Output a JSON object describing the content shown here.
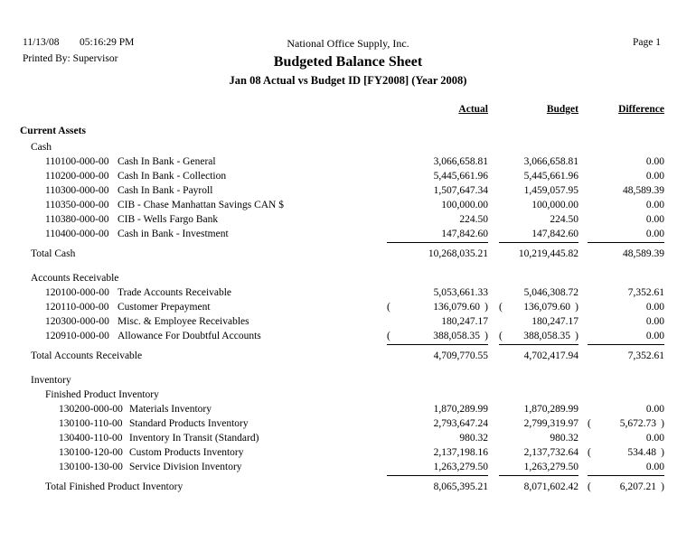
{
  "header": {
    "date": "11/13/08",
    "time": "05:16:29 PM",
    "printed_by": "Printed By: Supervisor",
    "company": "National Office Supply, Inc.",
    "page": "Page 1",
    "title": "Budgeted Balance Sheet",
    "subtitle": "Jan 08 Actual vs Budget ID [FY2008] (Year 2008)"
  },
  "columns": [
    "Actual",
    "Budget",
    "Difference"
  ],
  "section": "Current Assets",
  "groups": [
    {
      "name": "Cash",
      "accounts": [
        {
          "number": "110100-000-00",
          "description": "Cash In Bank - General",
          "amounts": [
            {
              "v": "3,066,658.81",
              "neg": false
            },
            {
              "v": "3,066,658.81",
              "neg": false
            },
            {
              "v": "0.00",
              "neg": false
            }
          ]
        },
        {
          "number": "110200-000-00",
          "description": "Cash In Bank - Collection",
          "amounts": [
            {
              "v": "5,445,661.96",
              "neg": false
            },
            {
              "v": "5,445,661.96",
              "neg": false
            },
            {
              "v": "0.00",
              "neg": false
            }
          ]
        },
        {
          "number": "110300-000-00",
          "description": "Cash In Bank - Payroll",
          "amounts": [
            {
              "v": "1,507,647.34",
              "neg": false
            },
            {
              "v": "1,459,057.95",
              "neg": false
            },
            {
              "v": "48,589.39",
              "neg": false
            }
          ]
        },
        {
          "number": "110350-000-00",
          "description": "CIB - Chase Manhattan Savings CAN $",
          "amounts": [
            {
              "v": "100,000.00",
              "neg": false
            },
            {
              "v": "100,000.00",
              "neg": false
            },
            {
              "v": "0.00",
              "neg": false
            }
          ]
        },
        {
          "number": "110380-000-00",
          "description": "CIB - Wells Fargo Bank",
          "amounts": [
            {
              "v": "224.50",
              "neg": false
            },
            {
              "v": "224.50",
              "neg": false
            },
            {
              "v": "0.00",
              "neg": false
            }
          ]
        },
        {
          "number": "110400-000-00",
          "description": "Cash in Bank - Investment",
          "amounts": [
            {
              "v": "147,842.60",
              "neg": false
            },
            {
              "v": "147,842.60",
              "neg": false
            },
            {
              "v": "0.00",
              "neg": false
            }
          ]
        }
      ],
      "total": {
        "label": "Total Cash",
        "amounts": [
          {
            "v": "10,268,035.21",
            "neg": false
          },
          {
            "v": "10,219,445.82",
            "neg": false
          },
          {
            "v": "48,589.39",
            "neg": false
          }
        ]
      }
    },
    {
      "name": "Accounts Receivable",
      "accounts": [
        {
          "number": "120100-000-00",
          "description": "Trade Accounts Receivable",
          "amounts": [
            {
              "v": "5,053,661.33",
              "neg": false
            },
            {
              "v": "5,046,308.72",
              "neg": false
            },
            {
              "v": "7,352.61",
              "neg": false
            }
          ]
        },
        {
          "number": "120110-000-00",
          "description": "Customer Prepayment",
          "amounts": [
            {
              "v": "136,079.60",
              "neg": true
            },
            {
              "v": "136,079.60",
              "neg": true
            },
            {
              "v": "0.00",
              "neg": false
            }
          ]
        },
        {
          "number": "120300-000-00",
          "description": "Misc. & Employee Receivables",
          "amounts": [
            {
              "v": "180,247.17",
              "neg": false
            },
            {
              "v": "180,247.17",
              "neg": false
            },
            {
              "v": "0.00",
              "neg": false
            }
          ]
        },
        {
          "number": "120910-000-00",
          "description": "Allowance For Doubtful Accounts",
          "amounts": [
            {
              "v": "388,058.35",
              "neg": true
            },
            {
              "v": "388,058.35",
              "neg": true
            },
            {
              "v": "0.00",
              "neg": false
            }
          ]
        }
      ],
      "total": {
        "label": "Total Accounts Receivable",
        "amounts": [
          {
            "v": "4,709,770.55",
            "neg": false
          },
          {
            "v": "4,702,417.94",
            "neg": false
          },
          {
            "v": "7,352.61",
            "neg": false
          }
        ]
      }
    },
    {
      "name": "Inventory",
      "subgroups": [
        {
          "name": "Finished Product Inventory",
          "accounts": [
            {
              "number": "130200-000-00",
              "description": "Materials Inventory",
              "amounts": [
                {
                  "v": "1,870,289.99",
                  "neg": false
                },
                {
                  "v": "1,870,289.99",
                  "neg": false
                },
                {
                  "v": "0.00",
                  "neg": false
                }
              ]
            },
            {
              "number": "130100-110-00",
              "description": "Standard Products Inventory",
              "amounts": [
                {
                  "v": "2,793,647.24",
                  "neg": false
                },
                {
                  "v": "2,799,319.97",
                  "neg": false
                },
                {
                  "v": "5,672.73",
                  "neg": true
                }
              ]
            },
            {
              "number": "130400-110-00",
              "description": "Inventory In Transit (Standard)",
              "amounts": [
                {
                  "v": "980.32",
                  "neg": false
                },
                {
                  "v": "980.32",
                  "neg": false
                },
                {
                  "v": "0.00",
                  "neg": false
                }
              ]
            },
            {
              "number": "130100-120-00",
              "description": "Custom Products Inventory",
              "amounts": [
                {
                  "v": "2,137,198.16",
                  "neg": false
                },
                {
                  "v": "2,137,732.64",
                  "neg": false
                },
                {
                  "v": "534.48",
                  "neg": true
                }
              ]
            },
            {
              "number": "130100-130-00",
              "description": "Service Division Inventory",
              "amounts": [
                {
                  "v": "1,263,279.50",
                  "neg": false
                },
                {
                  "v": "1,263,279.50",
                  "neg": false
                },
                {
                  "v": "0.00",
                  "neg": false
                }
              ]
            }
          ],
          "total": {
            "label": "Total Finished Product Inventory",
            "amounts": [
              {
                "v": "8,065,395.21",
                "neg": false
              },
              {
                "v": "8,071,602.42",
                "neg": false
              },
              {
                "v": "6,207.21",
                "neg": true
              }
            ]
          }
        }
      ]
    }
  ]
}
